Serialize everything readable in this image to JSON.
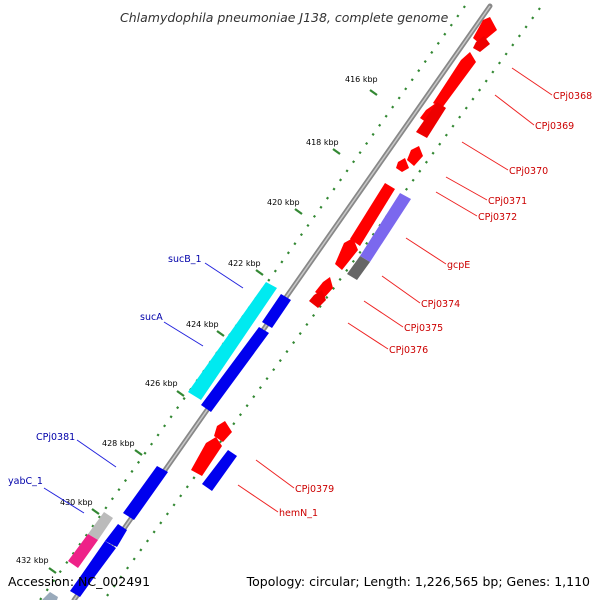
{
  "title": "Chlamydophila pneumoniae J138, complete genome",
  "footer": {
    "accession": "Accession: NC_002491",
    "summary": "Topology: circular; Length: 1,226,565 bp; Genes: 1,110"
  },
  "colors": {
    "plus_strand": "#ff0000",
    "minus_strand": "#0000ee",
    "plus_label": "#cc0000",
    "minus_label": "#0000aa",
    "ruler": "#338833",
    "backbone": "#888888",
    "cyan_feature": "#00e0e8",
    "purple_feature": "#7b68ee",
    "grey_feature": "#6e6e6e",
    "pink_feature": "#ee3399"
  },
  "ruler_ticks": [
    "416 kbp",
    "418 kbp",
    "420 kbp",
    "422 kbp",
    "424 kbp",
    "426 kbp",
    "428 kbp",
    "430 kbp",
    "432 kbp"
  ],
  "plus_labels": [
    "CPj0368",
    "CPj0369",
    "CPj0370",
    "CPj0371",
    "CPj0372",
    "gcpE",
    "CPj0374",
    "CPj0375",
    "CPj0376",
    "CPj0379",
    "hemN_1"
  ],
  "minus_labels": [
    "sucB_1",
    "sucA",
    "CPj0381",
    "yabC_1"
  ]
}
